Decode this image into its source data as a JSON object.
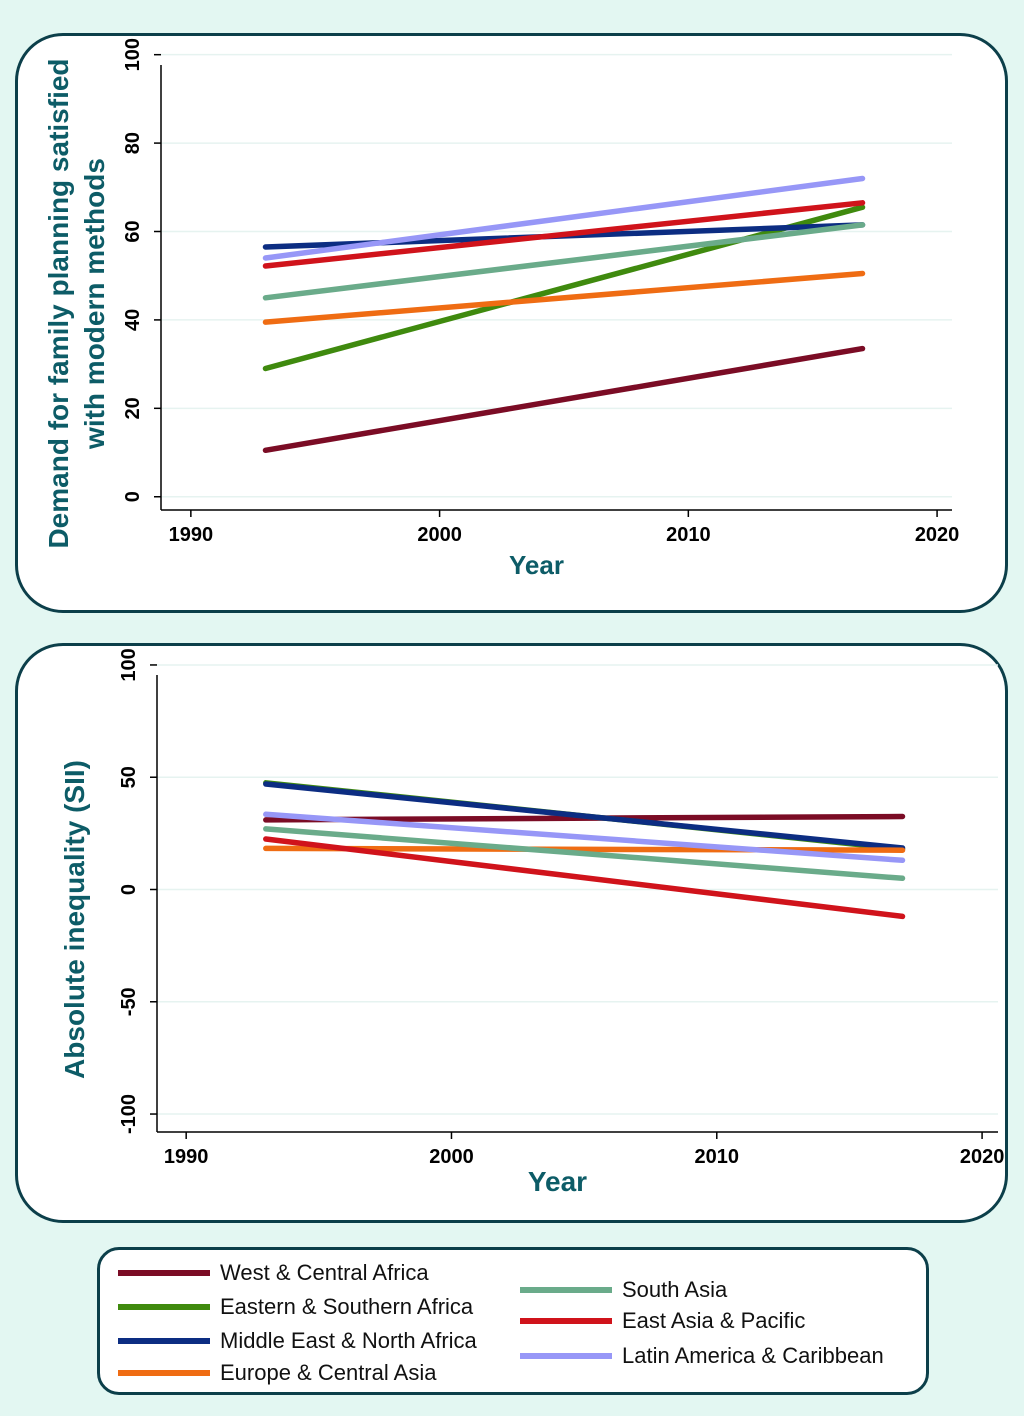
{
  "colors": {
    "background": "#e3f7f2",
    "panel_border": "#0c3f4a",
    "axis_title": "#0d5c67",
    "grid": "#e6f3f0"
  },
  "series_styles": [
    {
      "name": "West & Central Africa",
      "color": "#7b0c25"
    },
    {
      "name": "Eastern & Southern Africa",
      "color": "#3f8a0e"
    },
    {
      "name": "Middle East & North Africa",
      "color": "#0c2d82"
    },
    {
      "name": "Europe & Central Asia",
      "color": "#ef6c13"
    },
    {
      "name": "South Asia",
      "color": "#6aab8a"
    },
    {
      "name": "East Asia & Pacific",
      "color": "#d0131b"
    },
    {
      "name": "Latin America & Caribbean",
      "color": "#9797f7"
    }
  ],
  "legend": {
    "items": [
      {
        "label": "West & Central Africa",
        "color": "#7b0c25"
      },
      {
        "label": "Eastern & Southern Africa",
        "color": "#3f8a0e"
      },
      {
        "label": "Middle East & North Africa",
        "color": "#0c2d82"
      },
      {
        "label": "Europe & Central Asia",
        "color": "#ef6c13"
      },
      {
        "label": "South Asia",
        "color": "#6aab8a"
      },
      {
        "label": "East Asia & Pacific",
        "color": "#d0131b"
      },
      {
        "label": "Latin America & Caribbean",
        "color": "#9797f7"
      }
    ]
  },
  "chart_data": [
    {
      "type": "line",
      "title": "",
      "xlabel": "Year",
      "ylabel_lines": [
        "Demand for family planning satisfied",
        "with modern methods"
      ],
      "xlim": [
        1988.8,
        2020.6
      ],
      "ylim": [
        -3,
        104
      ],
      "xticks": [
        1990,
        2000,
        2010,
        2020
      ],
      "yticks": [
        0,
        20,
        40,
        60,
        80,
        100
      ],
      "grid": true,
      "series": [
        {
          "name": "West & Central Africa",
          "x": [
            1993,
            2017
          ],
          "y": [
            10.5,
            33.5
          ]
        },
        {
          "name": "Eastern & Southern Africa",
          "x": [
            1993,
            2017
          ],
          "y": [
            29,
            65.5
          ]
        },
        {
          "name": "Middle East & North Africa",
          "x": [
            1993,
            2017
          ],
          "y": [
            56.5,
            61.5
          ]
        },
        {
          "name": "Europe & Central Asia",
          "x": [
            1993,
            2017
          ],
          "y": [
            39.5,
            50.5
          ]
        },
        {
          "name": "South Asia",
          "x": [
            1993,
            2017
          ],
          "y": [
            45,
            61.5
          ]
        },
        {
          "name": "East Asia & Pacific",
          "x": [
            1993,
            2017
          ],
          "y": [
            52.2,
            66.5
          ]
        },
        {
          "name": "Latin America & Caribbean",
          "x": [
            1993,
            2017
          ],
          "y": [
            54,
            72
          ]
        }
      ]
    },
    {
      "type": "line",
      "title": "",
      "xlabel": "Year",
      "ylabel_lines": [
        "Absolute inequality (SII)"
      ],
      "xlim": [
        1988.9,
        2020.6
      ],
      "ylim": [
        -108,
        108
      ],
      "xticks": [
        1990,
        2000,
        2010,
        2020
      ],
      "yticks": [
        -100,
        -50,
        0,
        50,
        100
      ],
      "grid": true,
      "series": [
        {
          "name": "West & Central Africa",
          "x": [
            1993,
            2017
          ],
          "y": [
            31,
            32.5
          ]
        },
        {
          "name": "Eastern & Southern Africa",
          "x": [
            1993,
            2017
          ],
          "y": [
            47.5,
            18
          ]
        },
        {
          "name": "Middle East & North Africa",
          "x": [
            1993,
            2017
          ],
          "y": [
            47,
            18.5
          ]
        },
        {
          "name": "Europe & Central Asia",
          "x": [
            1993,
            2017
          ],
          "y": [
            18.3,
            17.5
          ]
        },
        {
          "name": "South Asia",
          "x": [
            1993,
            2017
          ],
          "y": [
            27,
            5
          ]
        },
        {
          "name": "East Asia & Pacific",
          "x": [
            1993,
            2017
          ],
          "y": [
            22.5,
            -12
          ]
        },
        {
          "name": "Latin America & Caribbean",
          "x": [
            1993,
            2017
          ],
          "y": [
            33.5,
            13
          ]
        }
      ]
    }
  ]
}
